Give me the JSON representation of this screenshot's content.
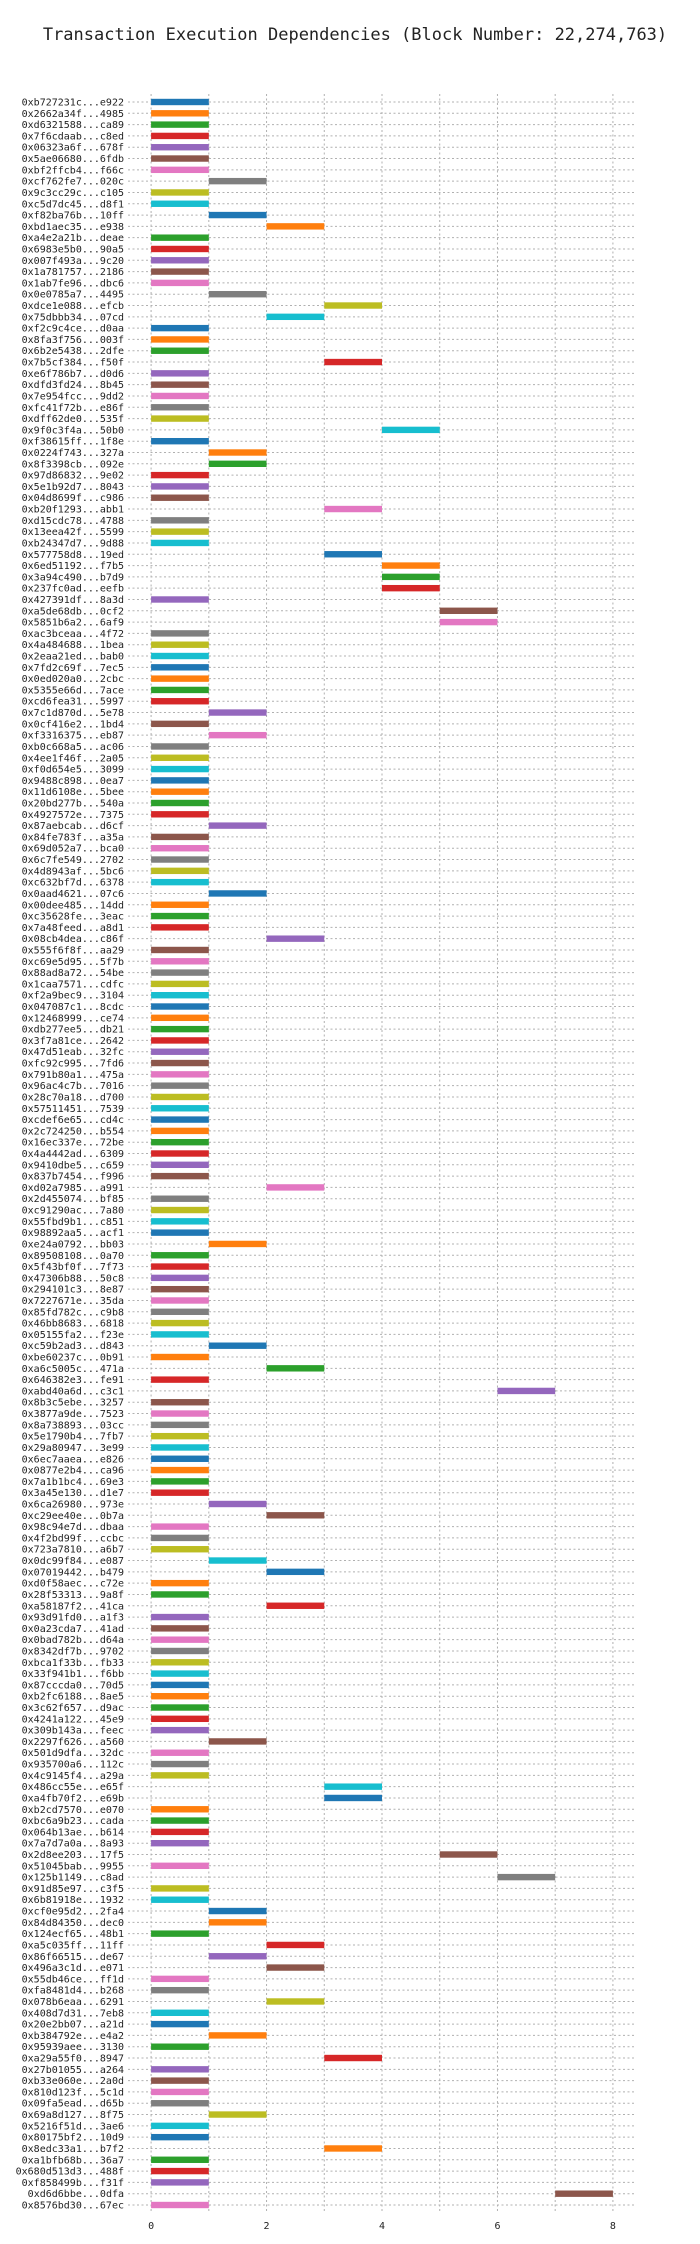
{
  "chart_data": {
    "type": "bar",
    "orientation": "horizontal-gantt",
    "title": "Transaction Execution Dependencies (Block Number: 22,274,763)",
    "xlabel": "",
    "ylabel": "",
    "xlim": [
      -0.4,
      8.4
    ],
    "xticks": [
      0,
      2,
      4,
      6,
      8
    ],
    "grid": true,
    "palette": [
      "#1f77b4",
      "#ff7f0e",
      "#2ca02c",
      "#d62728",
      "#9467bd",
      "#8c564b",
      "#e377c2",
      "#7f7f7f",
      "#bcbd22",
      "#17becf"
    ],
    "tasks": [
      {
        "label": "0xb727231c...e922",
        "start": 0,
        "end": 1
      },
      {
        "label": "0x2662a34f...4985",
        "start": 0,
        "end": 1
      },
      {
        "label": "0xd6321588...ca89",
        "start": 0,
        "end": 1
      },
      {
        "label": "0x7f6cdaab...c8ed",
        "start": 0,
        "end": 1
      },
      {
        "label": "0x06323a6f...678f",
        "start": 0,
        "end": 1
      },
      {
        "label": "0x5ae06680...6fdb",
        "start": 0,
        "end": 1
      },
      {
        "label": "0xbf2ffcb4...f66c",
        "start": 0,
        "end": 1
      },
      {
        "label": "0xcf762fe7...020c",
        "start": 1,
        "end": 2
      },
      {
        "label": "0x9c3cc29c...c105",
        "start": 0,
        "end": 1
      },
      {
        "label": "0xc5d7dc45...d8f1",
        "start": 0,
        "end": 1
      },
      {
        "label": "0xf82ba76b...10ff",
        "start": 1,
        "end": 2
      },
      {
        "label": "0xbd1aec35...e938",
        "start": 2,
        "end": 3
      },
      {
        "label": "0xa4e2a21b...deae",
        "start": 0,
        "end": 1
      },
      {
        "label": "0x6983e5b0...90a5",
        "start": 0,
        "end": 1
      },
      {
        "label": "0x007f493a...9c20",
        "start": 0,
        "end": 1
      },
      {
        "label": "0x1a781757...2186",
        "start": 0,
        "end": 1
      },
      {
        "label": "0x1ab7fe96...dbc6",
        "start": 0,
        "end": 1
      },
      {
        "label": "0x0e0785a7...4495",
        "start": 1,
        "end": 2
      },
      {
        "label": "0xdce1e088...efcb",
        "start": 3,
        "end": 4
      },
      {
        "label": "0x75dbbb34...07cd",
        "start": 2,
        "end": 3
      },
      {
        "label": "0xf2c9c4ce...d0aa",
        "start": 0,
        "end": 1
      },
      {
        "label": "0x8fa3f756...003f",
        "start": 0,
        "end": 1
      },
      {
        "label": "0x6b2e5438...2dfe",
        "start": 0,
        "end": 1
      },
      {
        "label": "0x7b5cf384...f50f",
        "start": 3,
        "end": 4
      },
      {
        "label": "0xe6f786b7...d0d6",
        "start": 0,
        "end": 1
      },
      {
        "label": "0xdfd3fd24...8b45",
        "start": 0,
        "end": 1
      },
      {
        "label": "0x7e954fcc...9dd2",
        "start": 0,
        "end": 1
      },
      {
        "label": "0xfc41f72b...e86f",
        "start": 0,
        "end": 1
      },
      {
        "label": "0xdff62de0...535f",
        "start": 0,
        "end": 1
      },
      {
        "label": "0x9f0c3f4a...50b0",
        "start": 4,
        "end": 5
      },
      {
        "label": "0xf38615ff...1f8e",
        "start": 0,
        "end": 1
      },
      {
        "label": "0x0224f743...327a",
        "start": 1,
        "end": 2
      },
      {
        "label": "0x8f3398cb...092e",
        "start": 1,
        "end": 2
      },
      {
        "label": "0x97d86832...9e02",
        "start": 0,
        "end": 1
      },
      {
        "label": "0x5e1b92d7...8043",
        "start": 0,
        "end": 1
      },
      {
        "label": "0x04d8699f...c986",
        "start": 0,
        "end": 1
      },
      {
        "label": "0xb20f1293...abb1",
        "start": 3,
        "end": 4
      },
      {
        "label": "0xd15cdc78...4788",
        "start": 0,
        "end": 1
      },
      {
        "label": "0x13eea42f...5599",
        "start": 0,
        "end": 1
      },
      {
        "label": "0xb24347d7...9d88",
        "start": 0,
        "end": 1
      },
      {
        "label": "0x577758d8...19ed",
        "start": 3,
        "end": 4
      },
      {
        "label": "0x6ed51192...f7b5",
        "start": 4,
        "end": 5
      },
      {
        "label": "0x3a94c490...b7d9",
        "start": 4,
        "end": 5
      },
      {
        "label": "0x237fc0ad...eefb",
        "start": 4,
        "end": 5
      },
      {
        "label": "0x427391df...8a3d",
        "start": 0,
        "end": 1
      },
      {
        "label": "0xa5de68db...0cf2",
        "start": 5,
        "end": 6
      },
      {
        "label": "0x5851b6a2...6af9",
        "start": 5,
        "end": 6
      },
      {
        "label": "0xac3bceaa...4f72",
        "start": 0,
        "end": 1
      },
      {
        "label": "0x4a484688...1bea",
        "start": 0,
        "end": 1
      },
      {
        "label": "0x2eaa21ed...bab0",
        "start": 0,
        "end": 1
      },
      {
        "label": "0x7fd2c69f...7ec5",
        "start": 0,
        "end": 1
      },
      {
        "label": "0x0ed020a0...2cbc",
        "start": 0,
        "end": 1
      },
      {
        "label": "0x5355e66d...7ace",
        "start": 0,
        "end": 1
      },
      {
        "label": "0xcd6fea31...5997",
        "start": 0,
        "end": 1
      },
      {
        "label": "0x7c1d870d...5e78",
        "start": 1,
        "end": 2
      },
      {
        "label": "0x0cf416e2...1bd4",
        "start": 0,
        "end": 1
      },
      {
        "label": "0xf3316375...eb87",
        "start": 1,
        "end": 2
      },
      {
        "label": "0xb0c668a5...ac06",
        "start": 0,
        "end": 1
      },
      {
        "label": "0x4ee1f46f...2a05",
        "start": 0,
        "end": 1
      },
      {
        "label": "0xf0d654e5...3099",
        "start": 0,
        "end": 1
      },
      {
        "label": "0x9488c898...0ea7",
        "start": 0,
        "end": 1
      },
      {
        "label": "0x11d6108e...5bee",
        "start": 0,
        "end": 1
      },
      {
        "label": "0x20bd277b...540a",
        "start": 0,
        "end": 1
      },
      {
        "label": "0x4927572e...7375",
        "start": 0,
        "end": 1
      },
      {
        "label": "0x87aebcab...d6cf",
        "start": 1,
        "end": 2
      },
      {
        "label": "0x84fe783f...a35a",
        "start": 0,
        "end": 1
      },
      {
        "label": "0x69d052a7...bca0",
        "start": 0,
        "end": 1
      },
      {
        "label": "0x6c7fe549...2702",
        "start": 0,
        "end": 1
      },
      {
        "label": "0x4d8943af...5bc6",
        "start": 0,
        "end": 1
      },
      {
        "label": "0xc632bf7d...6378",
        "start": 0,
        "end": 1
      },
      {
        "label": "0x0aad4621...07c6",
        "start": 1,
        "end": 2
      },
      {
        "label": "0x00dee485...14dd",
        "start": 0,
        "end": 1
      },
      {
        "label": "0xc35628fe...3eac",
        "start": 0,
        "end": 1
      },
      {
        "label": "0x7a48feed...a8d1",
        "start": 0,
        "end": 1
      },
      {
        "label": "0x08cb4dea...c86f",
        "start": 2,
        "end": 3
      },
      {
        "label": "0x555f6f8f...aa29",
        "start": 0,
        "end": 1
      },
      {
        "label": "0xc69e5d95...5f7b",
        "start": 0,
        "end": 1
      },
      {
        "label": "0x88ad8a72...54be",
        "start": 0,
        "end": 1
      },
      {
        "label": "0x1caa7571...cdfc",
        "start": 0,
        "end": 1
      },
      {
        "label": "0xf2a9bec9...3104",
        "start": 0,
        "end": 1
      },
      {
        "label": "0x047087c1...8cdc",
        "start": 0,
        "end": 1
      },
      {
        "label": "0x12468999...ce74",
        "start": 0,
        "end": 1
      },
      {
        "label": "0xdb277ee5...db21",
        "start": 0,
        "end": 1
      },
      {
        "label": "0x3f7a81ce...2642",
        "start": 0,
        "end": 1
      },
      {
        "label": "0x47d51eab...32fc",
        "start": 0,
        "end": 1
      },
      {
        "label": "0xfc92c995...7fd6",
        "start": 0,
        "end": 1
      },
      {
        "label": "0x791b80a1...475a",
        "start": 0,
        "end": 1
      },
      {
        "label": "0x96ac4c7b...7016",
        "start": 0,
        "end": 1
      },
      {
        "label": "0x28c70a18...d700",
        "start": 0,
        "end": 1
      },
      {
        "label": "0x57511451...7539",
        "start": 0,
        "end": 1
      },
      {
        "label": "0xcdef6e65...cd4c",
        "start": 0,
        "end": 1
      },
      {
        "label": "0x2c724250...b554",
        "start": 0,
        "end": 1
      },
      {
        "label": "0x16ec337e...72be",
        "start": 0,
        "end": 1
      },
      {
        "label": "0x4a4442ad...6309",
        "start": 0,
        "end": 1
      },
      {
        "label": "0x9410dbe5...c659",
        "start": 0,
        "end": 1
      },
      {
        "label": "0x837b7454...f996",
        "start": 0,
        "end": 1
      },
      {
        "label": "0xd02a7985...a991",
        "start": 2,
        "end": 3
      },
      {
        "label": "0x2d455074...bf85",
        "start": 0,
        "end": 1
      },
      {
        "label": "0xc91290ac...7a80",
        "start": 0,
        "end": 1
      },
      {
        "label": "0x55fbd9b1...c851",
        "start": 0,
        "end": 1
      },
      {
        "label": "0x98892aa5...acf1",
        "start": 0,
        "end": 1
      },
      {
        "label": "0xe24a0792...bb03",
        "start": 1,
        "end": 2
      },
      {
        "label": "0x89508108...0a70",
        "start": 0,
        "end": 1
      },
      {
        "label": "0x5f43bf0f...7f73",
        "start": 0,
        "end": 1
      },
      {
        "label": "0x47306b88...50c8",
        "start": 0,
        "end": 1
      },
      {
        "label": "0x294101c3...8e87",
        "start": 0,
        "end": 1
      },
      {
        "label": "0x7227671e...35da",
        "start": 0,
        "end": 1
      },
      {
        "label": "0x85fd782c...c9b8",
        "start": 0,
        "end": 1
      },
      {
        "label": "0x46bb8683...6818",
        "start": 0,
        "end": 1
      },
      {
        "label": "0x05155fa2...f23e",
        "start": 0,
        "end": 1
      },
      {
        "label": "0xc59b2ad3...d843",
        "start": 1,
        "end": 2
      },
      {
        "label": "0xbe60237c...0b91",
        "start": 0,
        "end": 1
      },
      {
        "label": "0xa6c5005c...471a",
        "start": 2,
        "end": 3
      },
      {
        "label": "0x646382e3...fe91",
        "start": 0,
        "end": 1
      },
      {
        "label": "0xabd40a6d...c3c1",
        "start": 6,
        "end": 7
      },
      {
        "label": "0x8b3c5ebe...3257",
        "start": 0,
        "end": 1
      },
      {
        "label": "0x3877a9de...7523",
        "start": 0,
        "end": 1
      },
      {
        "label": "0x8a738893...03cc",
        "start": 0,
        "end": 1
      },
      {
        "label": "0x5e1790b4...7fb7",
        "start": 0,
        "end": 1
      },
      {
        "label": "0x29a80947...3e99",
        "start": 0,
        "end": 1
      },
      {
        "label": "0x6ec7aaea...e826",
        "start": 0,
        "end": 1
      },
      {
        "label": "0x0877e2b4...ca96",
        "start": 0,
        "end": 1
      },
      {
        "label": "0x7a1b1bc4...69e3",
        "start": 0,
        "end": 1
      },
      {
        "label": "0x3a45e130...d1e7",
        "start": 0,
        "end": 1
      },
      {
        "label": "0x6ca26980...973e",
        "start": 1,
        "end": 2
      },
      {
        "label": "0xc29ee40e...0b7a",
        "start": 2,
        "end": 3
      },
      {
        "label": "0x98c94e7d...dbaa",
        "start": 0,
        "end": 1
      },
      {
        "label": "0x4f2bd99f...ccbc",
        "start": 0,
        "end": 1
      },
      {
        "label": "0x723a7810...a6b7",
        "start": 0,
        "end": 1
      },
      {
        "label": "0x0dc99f84...e087",
        "start": 1,
        "end": 2
      },
      {
        "label": "0x07019442...b479",
        "start": 2,
        "end": 3
      },
      {
        "label": "0xd0f58aec...c72e",
        "start": 0,
        "end": 1
      },
      {
        "label": "0x28f53313...9a8f",
        "start": 0,
        "end": 1
      },
      {
        "label": "0xa58187f2...41ca",
        "start": 2,
        "end": 3
      },
      {
        "label": "0x93d91fd0...a1f3",
        "start": 0,
        "end": 1
      },
      {
        "label": "0x0a23cda7...41ad",
        "start": 0,
        "end": 1
      },
      {
        "label": "0x0bad782b...d64a",
        "start": 0,
        "end": 1
      },
      {
        "label": "0x8342df7b...9702",
        "start": 0,
        "end": 1
      },
      {
        "label": "0xbca1f33b...fb33",
        "start": 0,
        "end": 1
      },
      {
        "label": "0x33f941b1...f6bb",
        "start": 0,
        "end": 1
      },
      {
        "label": "0x87cccda0...70d5",
        "start": 0,
        "end": 1
      },
      {
        "label": "0xb2fc6188...8ae5",
        "start": 0,
        "end": 1
      },
      {
        "label": "0x3c62f657...d9ac",
        "start": 0,
        "end": 1
      },
      {
        "label": "0x4241a122...45e9",
        "start": 0,
        "end": 1
      },
      {
        "label": "0x309b143a...feec",
        "start": 0,
        "end": 1
      },
      {
        "label": "0x2297f626...a560",
        "start": 1,
        "end": 2
      },
      {
        "label": "0x501d9dfa...32dc",
        "start": 0,
        "end": 1
      },
      {
        "label": "0x935700a6...112c",
        "start": 0,
        "end": 1
      },
      {
        "label": "0x4c9145f4...a29a",
        "start": 0,
        "end": 1
      },
      {
        "label": "0x486cc55e...e65f",
        "start": 3,
        "end": 4
      },
      {
        "label": "0xa4fb70f2...e69b",
        "start": 3,
        "end": 4
      },
      {
        "label": "0xb2cd7570...e070",
        "start": 0,
        "end": 1
      },
      {
        "label": "0xbc6a9b23...cada",
        "start": 0,
        "end": 1
      },
      {
        "label": "0x064b13ae...b614",
        "start": 0,
        "end": 1
      },
      {
        "label": "0x7a7d7a0a...8a93",
        "start": 0,
        "end": 1
      },
      {
        "label": "0x2d8ee203...17f5",
        "start": 5,
        "end": 6
      },
      {
        "label": "0x51045bab...9955",
        "start": 0,
        "end": 1
      },
      {
        "label": "0x125b1149...c8ad",
        "start": 6,
        "end": 7
      },
      {
        "label": "0x91d85e97...c3f5",
        "start": 0,
        "end": 1
      },
      {
        "label": "0x6b81918e...1932",
        "start": 0,
        "end": 1
      },
      {
        "label": "0xcf0e95d2...2fa4",
        "start": 1,
        "end": 2
      },
      {
        "label": "0x84d84350...dec0",
        "start": 1,
        "end": 2
      },
      {
        "label": "0x124ecf65...48b1",
        "start": 0,
        "end": 1
      },
      {
        "label": "0xa5c035ff...11ff",
        "start": 2,
        "end": 3
      },
      {
        "label": "0x86f66515...de67",
        "start": 1,
        "end": 2
      },
      {
        "label": "0x496a3c1d...e071",
        "start": 2,
        "end": 3
      },
      {
        "label": "0x55db46ce...ff1d",
        "start": 0,
        "end": 1
      },
      {
        "label": "0xfa8481d4...b268",
        "start": 0,
        "end": 1
      },
      {
        "label": "0x078b6eaa...6291",
        "start": 2,
        "end": 3
      },
      {
        "label": "0x408d7d31...7eb8",
        "start": 0,
        "end": 1
      },
      {
        "label": "0x20e2bb07...a21d",
        "start": 0,
        "end": 1
      },
      {
        "label": "0xb384792e...e4a2",
        "start": 1,
        "end": 2
      },
      {
        "label": "0x95939aee...3130",
        "start": 0,
        "end": 1
      },
      {
        "label": "0xa29a55f0...8947",
        "start": 3,
        "end": 4
      },
      {
        "label": "0x27b01055...a264",
        "start": 0,
        "end": 1
      },
      {
        "label": "0xb33e060e...2a0d",
        "start": 0,
        "end": 1
      },
      {
        "label": "0x810d123f...5c1d",
        "start": 0,
        "end": 1
      },
      {
        "label": "0x09fa5ead...d65b",
        "start": 0,
        "end": 1
      },
      {
        "label": "0x69a8d127...8f75",
        "start": 1,
        "end": 2
      },
      {
        "label": "0x5216f51d...3ae6",
        "start": 0,
        "end": 1
      },
      {
        "label": "0x80175bf2...10d9",
        "start": 0,
        "end": 1
      },
      {
        "label": "0x8edc33a1...b7f2",
        "start": 3,
        "end": 4
      },
      {
        "label": "0xa1bfb68b...36a7",
        "start": 0,
        "end": 1
      },
      {
        "label": "0x680d513d3...488f",
        "start": 0,
        "end": 1
      },
      {
        "label": "0xf858499b...f31f",
        "start": 0,
        "end": 1
      },
      {
        "label": "0xd6d6bbe...0dfa",
        "start": 7,
        "end": 8
      },
      {
        "label": "0x8576bd30...67ec",
        "start": 0,
        "end": 1
      }
    ]
  }
}
